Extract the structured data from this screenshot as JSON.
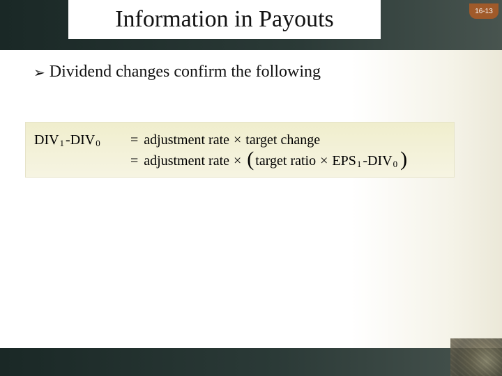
{
  "slide": {
    "title": "Information in Payouts",
    "page_label": "16-13",
    "bullet": "Dividend changes confirm the following",
    "colors": {
      "header_gradient_from": "#1a2826",
      "header_gradient_to": "#48544f",
      "page_tab_bg": "#a05a2a",
      "page_tab_text": "#ffffff",
      "equation_bg_top": "#f0eecd",
      "equation_bg_bottom": "#f6f4e2",
      "body_bg_edge": "#ebe8d8",
      "text": "#111111"
    },
    "equation": {
      "lhs_div1": "DIV",
      "lhs_sub1": "1",
      "lhs_minus": " - ",
      "lhs_div0": "DIV",
      "lhs_sub0": "0",
      "eq": "=",
      "row1_rhs_a": "adjustment rate",
      "mult": "×",
      "row1_rhs_b": "target change",
      "row2_rhs_a": "adjustment rate",
      "row2_rhs_b": "target ratio",
      "row2_eps": "EPS",
      "row2_eps_sub": "1",
      "row2_minus": " - ",
      "row2_div0": "DIV",
      "row2_div0_sub": "0",
      "lparen": "(",
      "rparen": ")"
    }
  }
}
